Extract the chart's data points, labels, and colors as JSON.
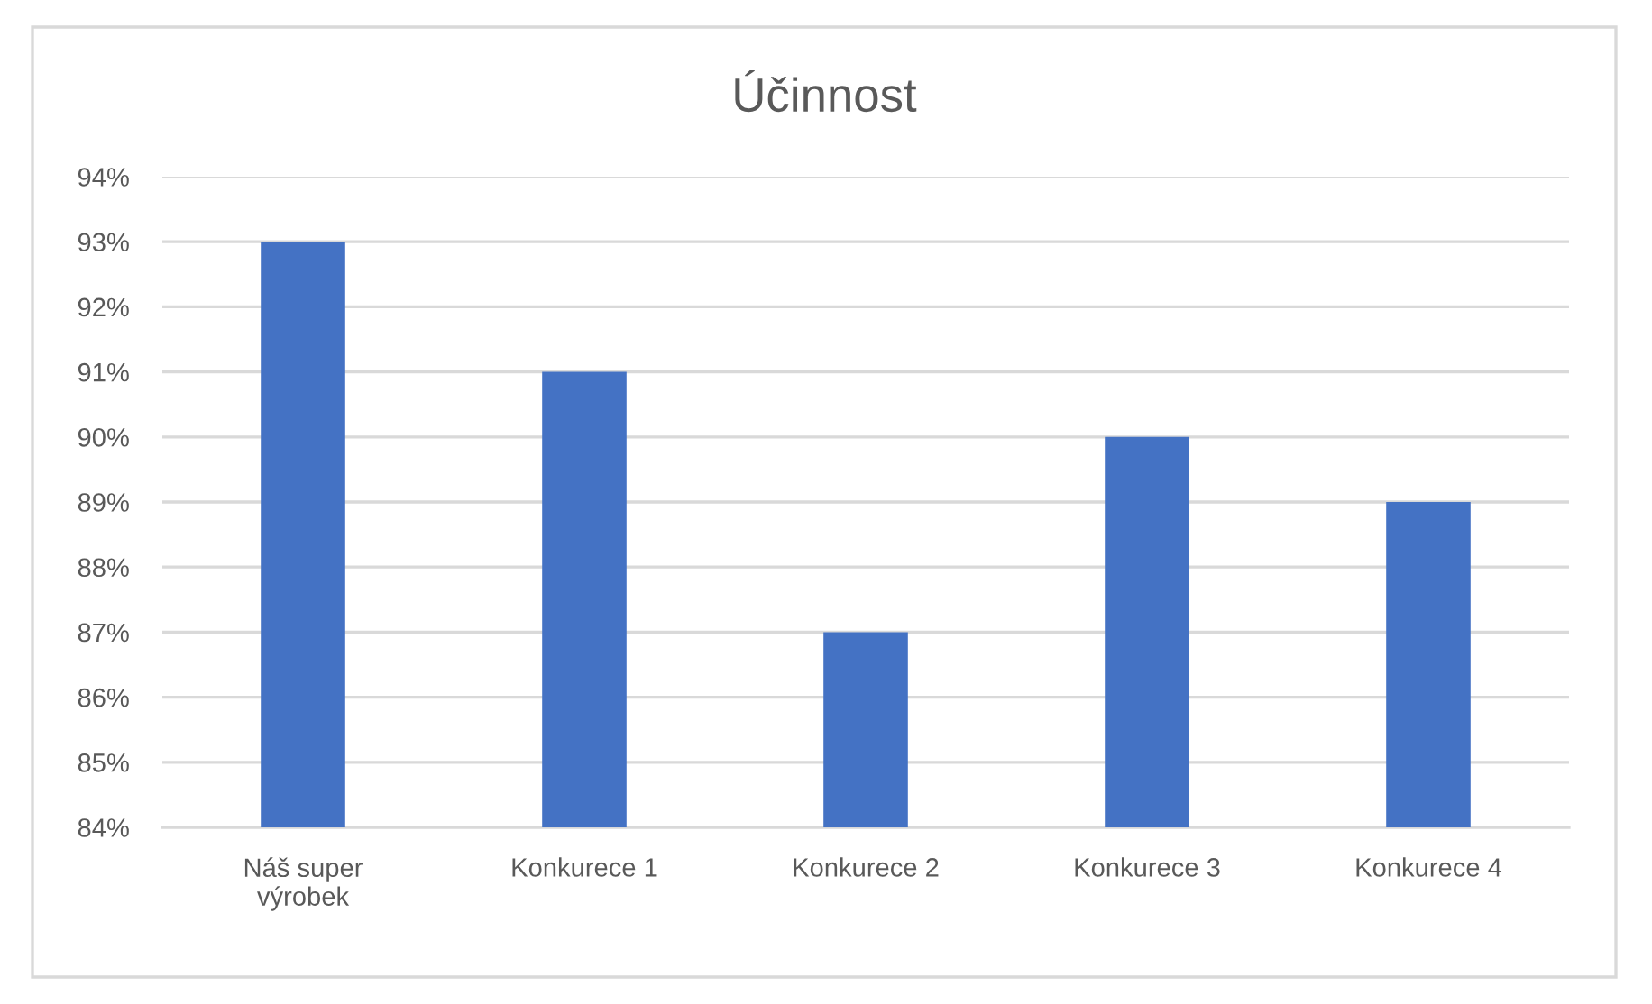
{
  "chart_data": {
    "type": "bar",
    "title": "Účinnost",
    "categories": [
      "Náš super výrobek",
      "Konkurece 1",
      "Konkurece 2",
      "Konkurece 3",
      "Konkurece 4"
    ],
    "values": [
      93,
      91,
      87,
      90,
      89
    ],
    "color": "#4472c4",
    "ylim": [
      84,
      94
    ],
    "yticks": [
      {
        "value": 84,
        "label": "84%"
      },
      {
        "value": 85,
        "label": "85%"
      },
      {
        "value": 86,
        "label": "86%"
      },
      {
        "value": 87,
        "label": "87%"
      },
      {
        "value": 88,
        "label": "88%"
      },
      {
        "value": 89,
        "label": "89%"
      },
      {
        "value": 90,
        "label": "90%"
      },
      {
        "value": 91,
        "label": "91%"
      },
      {
        "value": 92,
        "label": "92%"
      },
      {
        "value": 93,
        "label": "93%"
      },
      {
        "value": 94,
        "label": "94%"
      }
    ],
    "grid": "y"
  }
}
